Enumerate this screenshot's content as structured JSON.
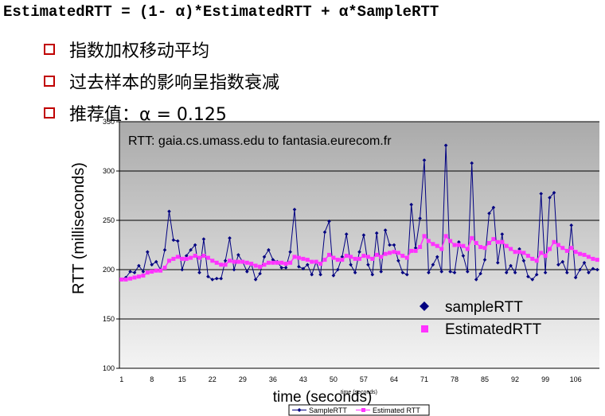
{
  "formula": "EstimatedRTT = (1- α)*EstimatedRTT + α*SampleRTT",
  "bullets": [
    "指数加权移动平均",
    "过去样本的影响呈指数衰减",
    "推荐值：α = 0.125"
  ],
  "colors": {
    "bullet": "#c00000",
    "sample": "#000080",
    "estimated": "#ff33ff",
    "plot_top": "#aaaaaa",
    "plot_bottom": "#f4f4f4"
  },
  "chart_data": {
    "type": "line",
    "annotation": "RTT: gaia.cs.umass.edu to fantasia.eurecom.fr",
    "xlabel": "time (seconds)",
    "xlabel_small": "time (seconds)",
    "ylabel": "RTT (milliseconds)",
    "ylim": [
      100,
      350
    ],
    "yticks": [
      100,
      150,
      200,
      250,
      300,
      350
    ],
    "xlim": [
      1,
      111
    ],
    "xticks": [
      1,
      8,
      15,
      22,
      29,
      36,
      43,
      50,
      57,
      64,
      71,
      78,
      85,
      92,
      99,
      106
    ],
    "grid": true,
    "legend": {
      "position": "center-right",
      "entries": [
        "sampleRTT",
        "EstimatedRTT"
      ]
    },
    "bottom_legend": [
      "SampleRTT",
      "Estimated RTT"
    ],
    "series": [
      {
        "name": "sampleRTT",
        "x": [
          1,
          2,
          3,
          4,
          5,
          6,
          7,
          8,
          9,
          10,
          11,
          12,
          13,
          14,
          15,
          16,
          17,
          18,
          19,
          20,
          21,
          22,
          23,
          24,
          25,
          26,
          27,
          28,
          29,
          30,
          31,
          32,
          33,
          34,
          35,
          36,
          37,
          38,
          39,
          40,
          41,
          42,
          43,
          44,
          45,
          46,
          47,
          48,
          49,
          50,
          51,
          52,
          53,
          54,
          55,
          56,
          57,
          58,
          59,
          60,
          61,
          62,
          63,
          64,
          65,
          66,
          67,
          68,
          69,
          70,
          71,
          72,
          73,
          74,
          75,
          76,
          77,
          78,
          79,
          80,
          81,
          82,
          83,
          84,
          85,
          86,
          87,
          88,
          89,
          90,
          91,
          92,
          93,
          94,
          95,
          96,
          97,
          98,
          99,
          100,
          101,
          102,
          103,
          104,
          105,
          106,
          107,
          108,
          109,
          110,
          111
        ],
        "y": [
          190,
          192,
          198,
          197,
          204,
          198,
          218,
          205,
          208,
          200,
          220,
          259,
          230,
          229,
          200,
          214,
          220,
          225,
          197,
          231,
          193,
          190,
          191,
          191,
          209,
          232,
          200,
          215,
          208,
          198,
          206,
          190,
          196,
          213,
          220,
          210,
          208,
          202,
          202,
          218,
          261,
          203,
          201,
          205,
          195,
          208,
          195,
          238,
          249,
          194,
          200,
          213,
          236,
          205,
          197,
          218,
          235,
          205,
          195,
          237,
          198,
          240,
          225,
          225,
          209,
          197,
          195,
          266,
          222,
          252,
          311,
          197,
          205,
          213,
          198,
          326,
          198,
          197,
          228,
          214,
          198,
          308,
          190,
          196,
          210,
          257,
          263,
          207,
          236,
          197,
          204,
          197,
          221,
          209,
          193,
          190,
          195,
          277,
          197,
          273,
          278,
          205,
          208,
          197,
          245,
          192,
          200,
          207,
          197,
          201,
          200
        ]
      },
      {
        "name": "EstimatedRTT",
        "x": [
          1,
          2,
          3,
          4,
          5,
          6,
          7,
          8,
          9,
          10,
          11,
          12,
          13,
          14,
          15,
          16,
          17,
          18,
          19,
          20,
          21,
          22,
          23,
          24,
          25,
          26,
          27,
          28,
          29,
          30,
          31,
          32,
          33,
          34,
          35,
          36,
          37,
          38,
          39,
          40,
          41,
          42,
          43,
          44,
          45,
          46,
          47,
          48,
          49,
          50,
          51,
          52,
          53,
          54,
          55,
          56,
          57,
          58,
          59,
          60,
          61,
          62,
          63,
          64,
          65,
          66,
          67,
          68,
          69,
          70,
          71,
          72,
          73,
          74,
          75,
          76,
          77,
          78,
          79,
          80,
          81,
          82,
          83,
          84,
          85,
          86,
          87,
          88,
          89,
          90,
          91,
          92,
          93,
          94,
          95,
          96,
          97,
          98,
          99,
          100,
          101,
          102,
          103,
          104,
          105,
          106,
          107,
          108,
          109,
          110,
          111
        ],
        "y": [
          190,
          190,
          191,
          192,
          193,
          194,
          197,
          198,
          199,
          199,
          202,
          209,
          211,
          213,
          211,
          211,
          212,
          214,
          212,
          214,
          212,
          209,
          207,
          205,
          205,
          209,
          208,
          208,
          208,
          207,
          206,
          204,
          203,
          205,
          207,
          207,
          207,
          207,
          206,
          207,
          213,
          212,
          211,
          210,
          208,
          208,
          206,
          210,
          215,
          212,
          210,
          210,
          214,
          213,
          211,
          211,
          214,
          213,
          211,
          215,
          213,
          216,
          217,
          218,
          217,
          214,
          212,
          219,
          219,
          223,
          234,
          229,
          226,
          224,
          221,
          234,
          229,
          225,
          225,
          224,
          221,
          232,
          227,
          223,
          222,
          227,
          231,
          228,
          228,
          224,
          221,
          218,
          218,
          217,
          214,
          211,
          209,
          217,
          214,
          221,
          228,
          225,
          222,
          219,
          222,
          218,
          216,
          215,
          213,
          211,
          210
        ]
      }
    ]
  }
}
